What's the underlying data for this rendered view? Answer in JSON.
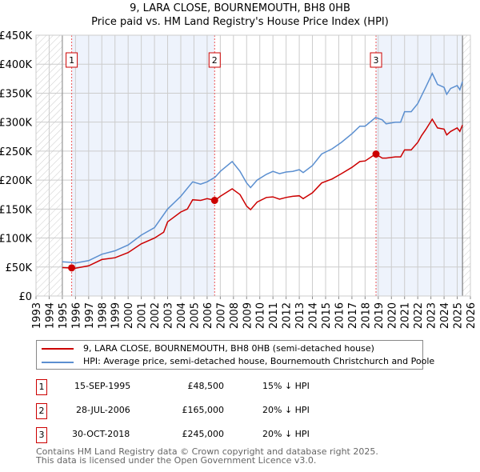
{
  "chart_data": {
    "type": "line",
    "title": "9, LARA CLOSE, BOURNEMOUTH, BH8 0HB",
    "subtitle": "Price paid vs. HM Land Registry's House Price Index (HPI)",
    "xlim": [
      1993,
      2026
    ],
    "ylim": [
      0,
      450000
    ],
    "y_ticks": [
      0,
      50000,
      100000,
      150000,
      200000,
      250000,
      300000,
      350000,
      400000,
      450000
    ],
    "y_tick_labels": [
      "£0",
      "£50K",
      "£100K",
      "£150K",
      "£200K",
      "£250K",
      "£300K",
      "£350K",
      "£400K",
      "£450K"
    ],
    "x_tick_labels": [
      "1993",
      "1994",
      "1995",
      "1996",
      "1997",
      "1998",
      "1999",
      "2000",
      "2001",
      "2002",
      "2003",
      "2004",
      "2005",
      "2006",
      "2007",
      "2008",
      "2009",
      "2010",
      "2011",
      "2012",
      "2013",
      "2014",
      "2015",
      "2016",
      "2017",
      "2018",
      "2019",
      "2020",
      "2021",
      "2022",
      "2023",
      "2024",
      "2025",
      "2026"
    ],
    "grid": true,
    "series": [
      {
        "name": "9, LARA CLOSE, BOURNEMOUTH, BH8 0HB (semi-detached house)",
        "color": "#cc0000",
        "x": [
          1995,
          1996,
          1997,
          1998,
          1999,
          2000,
          2001,
          2002,
          2002.7,
          2003,
          2004,
          2004.5,
          2004.9,
          2005.5,
          2006,
          2006.6,
          2007,
          2007.9,
          2008.5,
          2009,
          2009.3,
          2009.8,
          2010.5,
          2011,
          2011.5,
          2012,
          2012.5,
          2013,
          2013.3,
          2014,
          2014.7,
          2015.5,
          2016.2,
          2017,
          2017.6,
          2018,
          2018.8,
          2019.3,
          2019.6,
          2020.3,
          2020.7,
          2021,
          2021.5,
          2022,
          2022.3,
          2022.6,
          2023.1,
          2023.5,
          2024,
          2024.2,
          2024.5,
          2025,
          2025.2,
          2025.4
        ],
        "y": [
          49000,
          48000,
          52000,
          63000,
          66000,
          75000,
          90000,
          100000,
          110000,
          128000,
          145000,
          150000,
          166000,
          165000,
          168000,
          165000,
          172000,
          185000,
          175000,
          155000,
          149000,
          162000,
          170000,
          171000,
          167000,
          170000,
          172000,
          173000,
          168000,
          178000,
          195000,
          202000,
          211000,
          222000,
          232000,
          233000,
          245000,
          238000,
          238000,
          240000,
          240000,
          252000,
          252000,
          265000,
          277000,
          287000,
          305000,
          290000,
          288000,
          278000,
          284000,
          290000,
          284000,
          295000
        ]
      },
      {
        "name": "HPI: Average price, semi-detached house, Bournemouth Christchurch and Poole",
        "color": "#5b8fd0",
        "x": [
          1995,
          1995.7,
          1996,
          1997,
          1998,
          1999,
          2000,
          2001,
          2002,
          2003,
          2004,
          2004.9,
          2005.5,
          2006,
          2006.6,
          2007,
          2007.9,
          2008.5,
          2009,
          2009.3,
          2009.8,
          2010.5,
          2011,
          2011.5,
          2012,
          2012.5,
          2013,
          2013.3,
          2014,
          2014.7,
          2015.5,
          2016.2,
          2017,
          2017.6,
          2018,
          2018.8,
          2019.3,
          2019.6,
          2020.3,
          2020.7,
          2021,
          2021.5,
          2022,
          2022.3,
          2022.6,
          2023.1,
          2023.5,
          2024,
          2024.2,
          2024.5,
          2025,
          2025.2,
          2025.4
        ],
        "y": [
          59000,
          58000,
          57000,
          61000,
          72000,
          78000,
          88000,
          105000,
          118000,
          150000,
          172000,
          197000,
          193000,
          197000,
          205000,
          215000,
          232000,
          215000,
          195000,
          187000,
          200000,
          210000,
          215000,
          211000,
          214000,
          215000,
          218000,
          213000,
          225000,
          245000,
          254000,
          265000,
          280000,
          293000,
          293000,
          308000,
          304000,
          297000,
          300000,
          300000,
          318000,
          318000,
          332000,
          346000,
          360000,
          384000,
          365000,
          360000,
          348000,
          358000,
          363000,
          356000,
          370000
        ]
      }
    ],
    "sales": [
      {
        "label": "1",
        "x": 1995.71,
        "y": 48500,
        "date": "15-SEP-1995",
        "price": "£48,500",
        "hpi": "15% ↓ HPI"
      },
      {
        "label": "2",
        "x": 2006.57,
        "y": 165000,
        "date": "28-JUL-2006",
        "price": "£165,000",
        "hpi": "20% ↓ HPI"
      },
      {
        "label": "3",
        "x": 2018.83,
        "y": 245000,
        "date": "30-OCT-2018",
        "price": "£245,000",
        "hpi": "20% ↓ HPI"
      }
    ],
    "legend_placement": "bottom"
  },
  "footer": {
    "line1": "Contains HM Land Registry data © Crown copyright and database right 2025.",
    "line2": "This data is licensed under the Open Government Licence v3.0."
  }
}
